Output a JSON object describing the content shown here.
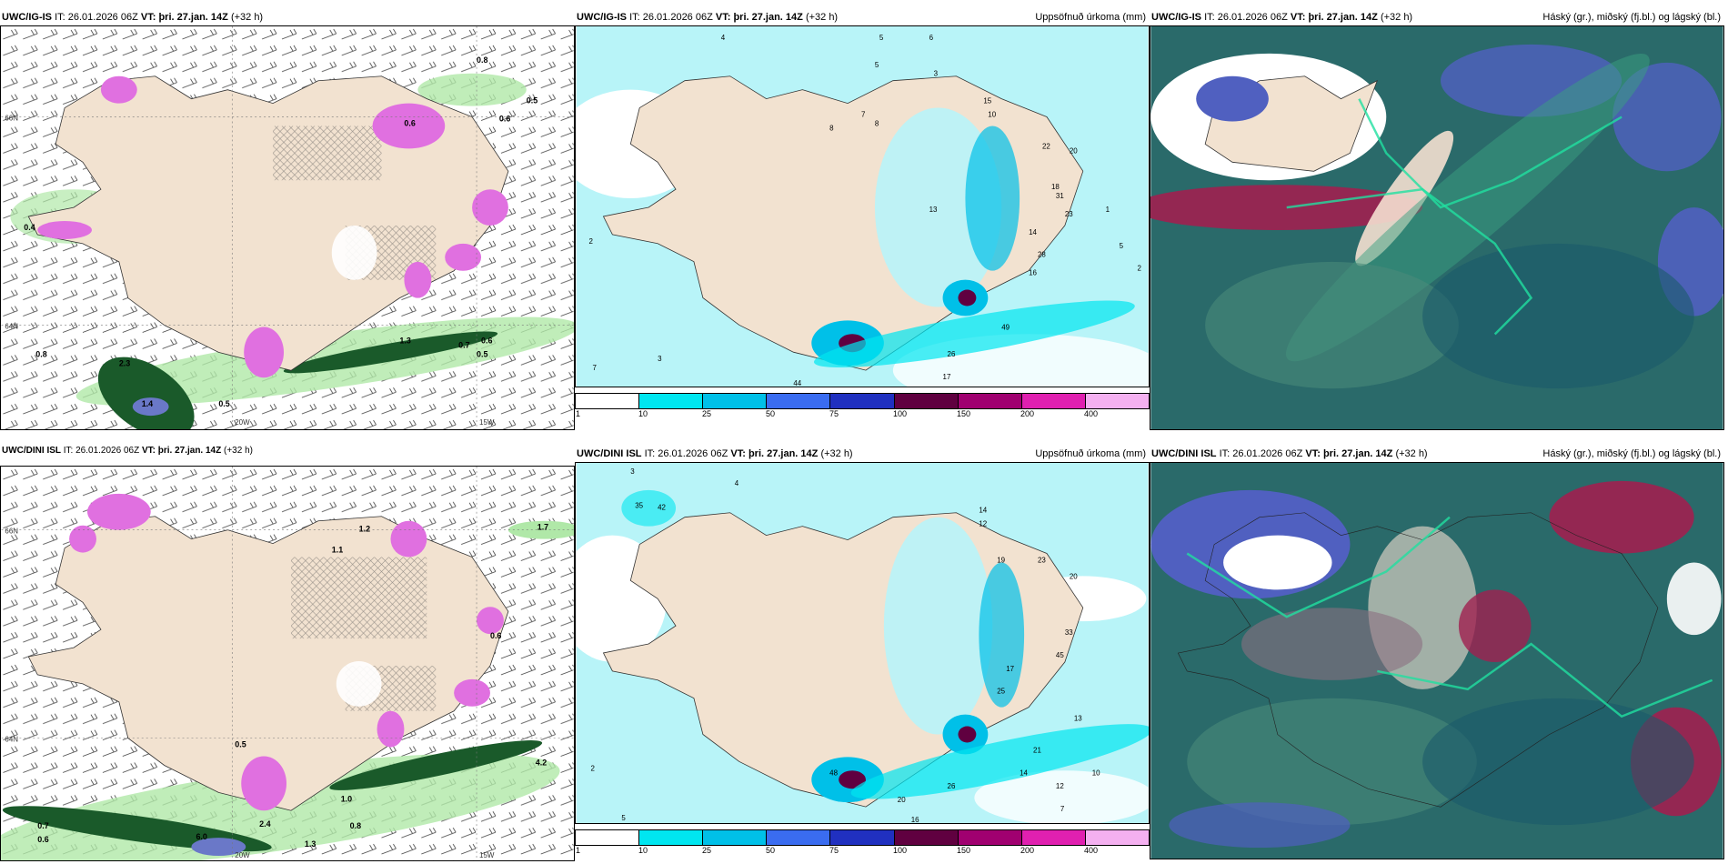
{
  "panels": {
    "r1c1": {
      "model": "UWC/IG-IS",
      "it_label": "IT:",
      "it_value": "26.01.2026 06Z",
      "vt_label": "VT:",
      "vt_value": "þri. 27.jan. 14Z",
      "lead": "(+32 h)",
      "right_title": ""
    },
    "r1c2": {
      "model": "UWC/IG-IS",
      "it_label": "IT:",
      "it_value": "26.01.2026 06Z",
      "vt_label": "VT:",
      "vt_value": "þri. 27.jan. 14Z",
      "lead": "(+32 h)",
      "right_title": "Uppsöfnuð úrkoma (mm)"
    },
    "r1c3": {
      "model": "UWC/IG-IS",
      "it_label": "IT:",
      "it_value": "26.01.2026 06Z",
      "vt_label": "VT:",
      "vt_value": "þri. 27.jan. 14Z",
      "lead": "(+32 h)",
      "right_title": "Háský (gr.), miðský (fj.bl.) og lágský (bl.)"
    },
    "r2c1": {
      "model": "UWC/DINI ISL",
      "it_label": "IT:",
      "it_value": "26.01.2026 06Z",
      "vt_label": "VT:",
      "vt_value": "þri. 27.jan. 14Z",
      "lead": "(+32 h)",
      "right_title": ""
    },
    "r2c2": {
      "model": "UWC/DINI ISL",
      "it_label": "IT:",
      "it_value": "26.01.2026 06Z",
      "vt_label": "VT:",
      "vt_value": "þri. 27.jan. 14Z",
      "lead": "(+32 h)",
      "right_title": "Uppsöfnuð úrkoma (mm)"
    },
    "r2c3": {
      "model": "UWC/DINI ISL",
      "it_label": "IT:",
      "it_value": "26.01.2026 06Z",
      "vt_label": "VT:",
      "vt_value": "þri. 27.jan. 14Z",
      "lead": "(+32 h)",
      "right_title": "Háský (gr.), miðský (fj.bl.) og lágský (bl.)"
    }
  },
  "axes": {
    "lat66": "66N",
    "lat64": "64N",
    "lat63": "63N",
    "lon20": "20W",
    "lon15": "15W"
  },
  "legend": {
    "ticks": [
      "1",
      "10",
      "25",
      "50",
      "75",
      "100",
      "150",
      "200",
      "400"
    ],
    "colors": [
      "#ffffff",
      "#00e6f0",
      "#00c0e8",
      "#3a6cf0",
      "#2030c0",
      "#600040",
      "#a00070",
      "#e020b0",
      "#f4b0f0"
    ]
  },
  "colors": {
    "land": "#f2e2d0",
    "sea_precip": "#b8f4f8",
    "wind_sea": "#ffffff",
    "precip_green": "#b0e8a8",
    "precip_dark": "#1a5a2a",
    "precip_pink": "#e070e0",
    "cloud_dark": "#2a6a6a",
    "cloud_blue": "#5060c0",
    "cloud_red": "#a02050"
  },
  "values": {
    "r1c1": [
      "0.8",
      "0.6",
      "0.5",
      "0.6",
      "0.4",
      "0.8",
      "2.3",
      "0.5",
      "1.3",
      "0.7",
      "0.6",
      "0.5",
      "1.4"
    ],
    "r1c2": [
      "4",
      "5",
      "6",
      "3",
      "5",
      "13",
      "15",
      "10",
      "7",
      "8",
      "22",
      "20",
      "23",
      "18",
      "31",
      "16",
      "14",
      "28",
      "1",
      "2",
      "5",
      "8",
      "49",
      "26",
      "17",
      "44",
      "3",
      "7",
      "2"
    ],
    "r2c1": [
      "1.2",
      "1.1",
      "1.7",
      "0.6",
      "4.2",
      "1.0",
      "0.8",
      "6.0",
      "2.4",
      "0.7",
      "0.6",
      "1.3",
      "0.5"
    ],
    "r2c2": [
      "3",
      "4",
      "12",
      "14",
      "23",
      "20",
      "19",
      "33",
      "35",
      "42",
      "45",
      "25",
      "21",
      "14",
      "12",
      "10",
      "26",
      "20",
      "16",
      "48",
      "5",
      "2",
      "7",
      "13",
      "17"
    ]
  }
}
